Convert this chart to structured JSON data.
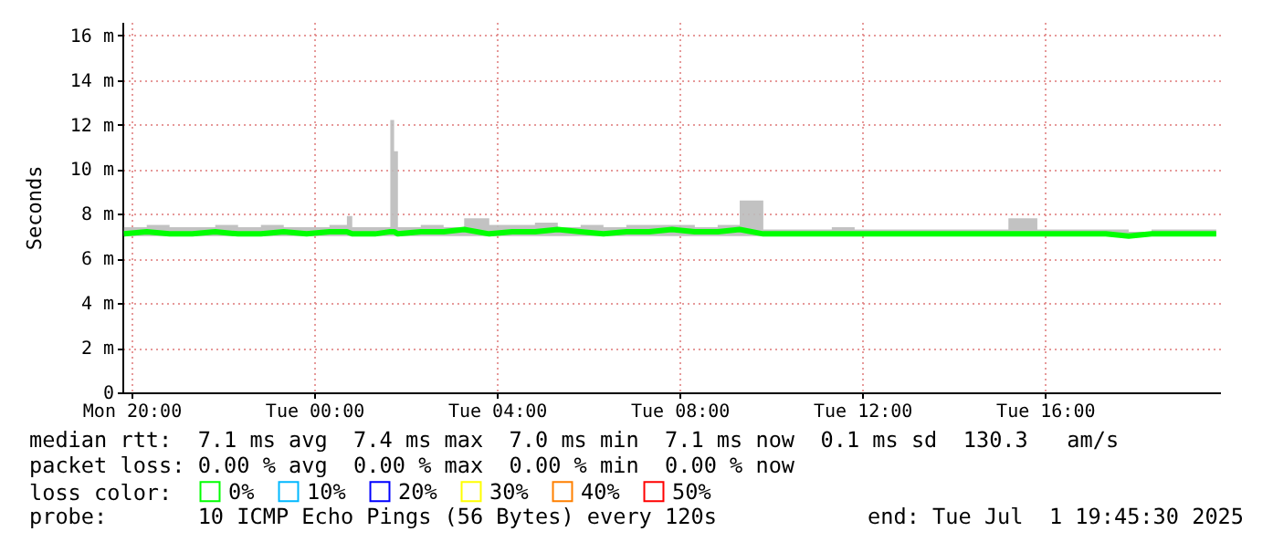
{
  "chart_data": {
    "type": "line",
    "ylabel": "Seconds",
    "legend_title": "loss color:",
    "legend": "bottom",
    "grid": true,
    "xlim": [
      "2025-06-30T19:48",
      "2025-07-01T19:50"
    ],
    "xticks": [
      {
        "value": "2025-06-30T20:00",
        "label": "Mon 20:00"
      },
      {
        "value": "2025-07-01T00:00",
        "label": "Tue 00:00"
      },
      {
        "value": "2025-07-01T04:00",
        "label": "Tue 04:00"
      },
      {
        "value": "2025-07-01T08:00",
        "label": "Tue 08:00"
      },
      {
        "value": "2025-07-01T12:00",
        "label": "Tue 12:00"
      },
      {
        "value": "2025-07-01T16:00",
        "label": "Tue 16:00"
      }
    ],
    "ylim": [
      0,
      16.6
    ],
    "yticks": [
      {
        "value": 0,
        "label": "0"
      },
      {
        "value": 2,
        "label": "2 m"
      },
      {
        "value": 4,
        "label": "4 m"
      },
      {
        "value": 6,
        "label": "6 m"
      },
      {
        "value": 8,
        "label": "8 m"
      },
      {
        "value": 10,
        "label": "10 m"
      },
      {
        "value": 12,
        "label": "12 m"
      },
      {
        "value": 14,
        "label": "14 m"
      },
      {
        "value": 16,
        "label": "16 m"
      }
    ],
    "x": [
      "2025-06-30T19:50",
      "2025-06-30T20:20",
      "2025-06-30T20:50",
      "2025-06-30T21:20",
      "2025-06-30T21:50",
      "2025-06-30T22:20",
      "2025-06-30T22:50",
      "2025-06-30T23:20",
      "2025-06-30T23:50",
      "2025-07-01T00:20",
      "2025-07-01T00:43",
      "2025-07-01T00:50",
      "2025-07-01T01:20",
      "2025-07-01T01:40",
      "2025-07-01T01:45",
      "2025-07-01T01:50",
      "2025-07-01T02:20",
      "2025-07-01T02:50",
      "2025-07-01T03:17",
      "2025-07-01T03:50",
      "2025-07-01T04:20",
      "2025-07-01T04:50",
      "2025-07-01T05:20",
      "2025-07-01T05:50",
      "2025-07-01T06:20",
      "2025-07-01T06:50",
      "2025-07-01T07:20",
      "2025-07-01T07:50",
      "2025-07-01T08:20",
      "2025-07-01T08:50",
      "2025-07-01T09:19",
      "2025-07-01T09:50",
      "2025-07-01T10:20",
      "2025-07-01T10:50",
      "2025-07-01T11:20",
      "2025-07-01T11:50",
      "2025-07-01T12:20",
      "2025-07-01T12:50",
      "2025-07-01T13:20",
      "2025-07-01T13:50",
      "2025-07-01T14:20",
      "2025-07-01T14:50",
      "2025-07-01T15:12",
      "2025-07-01T15:50",
      "2025-07-01T16:20",
      "2025-07-01T16:50",
      "2025-07-01T17:20",
      "2025-07-01T17:50",
      "2025-07-01T18:20",
      "2025-07-01T18:50",
      "2025-07-01T19:20",
      "2025-07-01T19:45"
    ],
    "series": [
      {
        "name": "0%",
        "color": "#00ff00",
        "values": [
          7.1,
          7.2,
          7.1,
          7.1,
          7.2,
          7.1,
          7.1,
          7.2,
          7.1,
          7.2,
          7.2,
          7.1,
          7.1,
          7.2,
          7.2,
          7.1,
          7.2,
          7.2,
          7.3,
          7.1,
          7.2,
          7.2,
          7.3,
          7.2,
          7.1,
          7.2,
          7.2,
          7.3,
          7.2,
          7.2,
          7.3,
          7.1,
          7.1,
          7.1,
          7.1,
          7.1,
          7.1,
          7.1,
          7.1,
          7.1,
          7.1,
          7.1,
          7.1,
          7.1,
          7.1,
          7.1,
          7.1,
          7.0,
          7.1,
          7.1,
          7.1,
          7.1
        ],
        "lower": [
          7.0,
          7.0,
          7.0,
          7.0,
          7.0,
          7.0,
          7.0,
          7.0,
          7.0,
          7.0,
          7.0,
          7.0,
          7.0,
          7.0,
          7.0,
          7.0,
          7.0,
          7.0,
          7.0,
          7.0,
          7.0,
          7.0,
          7.0,
          7.0,
          7.0,
          7.0,
          7.0,
          7.0,
          7.0,
          7.0,
          7.0,
          7.0,
          7.0,
          7.0,
          7.0,
          7.0,
          7.0,
          7.0,
          7.0,
          7.0,
          7.0,
          7.0,
          7.0,
          7.0,
          7.0,
          7.0,
          7.0,
          7.0,
          7.0,
          7.0,
          7.0,
          7.0
        ],
        "upper": [
          7.4,
          7.5,
          7.4,
          7.4,
          7.5,
          7.4,
          7.5,
          7.4,
          7.4,
          7.5,
          7.9,
          7.4,
          7.4,
          12.2,
          10.8,
          7.4,
          7.5,
          7.4,
          7.8,
          7.5,
          7.5,
          7.6,
          7.4,
          7.5,
          7.4,
          7.5,
          7.5,
          7.5,
          7.4,
          7.5,
          8.6,
          7.3,
          7.3,
          7.3,
          7.4,
          7.3,
          7.3,
          7.3,
          7.3,
          7.3,
          7.3,
          7.3,
          7.8,
          7.3,
          7.3,
          7.3,
          7.3,
          7.2,
          7.3,
          7.3,
          7.3,
          7.2
        ]
      },
      {
        "name": "10%",
        "color": "#00b8ff",
        "values": [
          null,
          null,
          null,
          null,
          null,
          null,
          null,
          null,
          null,
          null,
          null,
          null,
          null,
          null,
          null,
          null,
          null,
          null,
          null,
          null,
          null,
          null,
          null,
          null,
          null,
          null,
          null,
          null,
          null,
          null,
          null,
          null,
          null,
          null,
          null,
          null,
          null,
          null,
          null,
          null,
          null,
          null,
          null,
          null,
          null,
          null,
          null,
          null,
          null,
          null,
          null,
          null
        ]
      },
      {
        "name": "20%",
        "color": "#0000ff",
        "values": [
          null,
          null,
          null,
          null,
          null,
          null,
          null,
          null,
          null,
          null,
          null,
          null,
          null,
          null,
          null,
          null,
          null,
          null,
          null,
          null,
          null,
          null,
          null,
          null,
          null,
          null,
          null,
          null,
          null,
          null,
          null,
          null,
          null,
          null,
          null,
          null,
          null,
          null,
          null,
          null,
          null,
          null,
          null,
          null,
          null,
          null,
          null,
          null,
          null,
          null,
          null,
          null
        ]
      },
      {
        "name": "30%",
        "color": "#ffff00",
        "values": [
          null,
          null,
          null,
          null,
          null,
          null,
          null,
          null,
          null,
          null,
          null,
          null,
          null,
          null,
          null,
          null,
          null,
          null,
          null,
          null,
          null,
          null,
          null,
          null,
          null,
          null,
          null,
          null,
          null,
          null,
          null,
          null,
          null,
          null,
          null,
          null,
          null,
          null,
          null,
          null,
          null,
          null,
          null,
          null,
          null,
          null,
          null,
          null,
          null,
          null,
          null,
          null
        ]
      },
      {
        "name": "40%",
        "color": "#ff8000",
        "values": [
          null,
          null,
          null,
          null,
          null,
          null,
          null,
          null,
          null,
          null,
          null,
          null,
          null,
          null,
          null,
          null,
          null,
          null,
          null,
          null,
          null,
          null,
          null,
          null,
          null,
          null,
          null,
          null,
          null,
          null,
          null,
          null,
          null,
          null,
          null,
          null,
          null,
          null,
          null,
          null,
          null,
          null,
          null,
          null,
          null,
          null,
          null,
          null,
          null,
          null,
          null,
          null
        ]
      },
      {
        "name": "50%",
        "color": "#ff0000",
        "values": [
          null,
          null,
          null,
          null,
          null,
          null,
          null,
          null,
          null,
          null,
          null,
          null,
          null,
          null,
          null,
          null,
          null,
          null,
          null,
          null,
          null,
          null,
          null,
          null,
          null,
          null,
          null,
          null,
          null,
          null,
          null,
          null,
          null,
          null,
          null,
          null,
          null,
          null,
          null,
          null,
          null,
          null,
          null,
          null,
          null,
          null,
          null,
          null,
          null,
          null,
          null,
          null
        ]
      }
    ],
    "annotations": [
      "median rtt:  7.1 ms avg  7.4 ms max  7.0 ms min  7.1 ms now  0.1 ms sd  130.3   am/s",
      "packet loss: 0.00 % avg  0.00 % max  0.00 % min  0.00 % now",
      "probe:       10 ICMP Echo Pings (56 Bytes) every 120s",
      "end: Tue Jul  1 19:45:30 2025"
    ]
  }
}
